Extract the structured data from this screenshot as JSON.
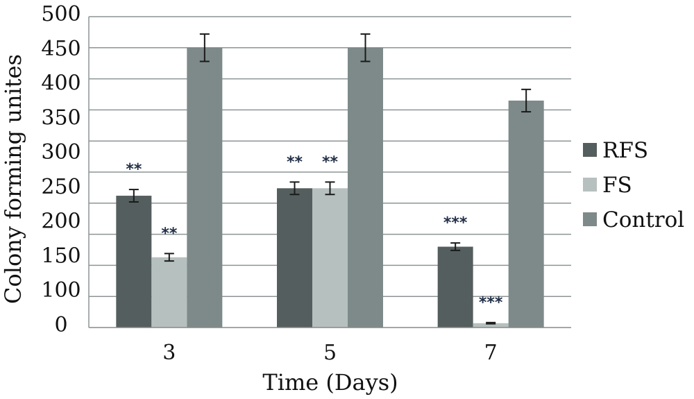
{
  "chart_data": {
    "type": "bar",
    "xlabel": "Time (Days)",
    "ylabel": "Colony forming unites",
    "ylim": [
      0,
      500
    ],
    "yticks": [
      "0",
      "100",
      "150",
      "200",
      "250",
      "300",
      "350",
      "400",
      "450",
      "500"
    ],
    "categories": [
      "3",
      "5",
      "7"
    ],
    "grid": true,
    "legend_position": "right",
    "series": [
      {
        "name": "RFS",
        "color": "#555e5e",
        "values": [
          212,
          224,
          130
        ],
        "errors": [
          10,
          10,
          6
        ],
        "annotations": [
          "**",
          "**",
          "***"
        ]
      },
      {
        "name": "FS",
        "color": "#b6c0bf",
        "values": [
          113,
          224,
          7
        ],
        "errors": [
          6,
          10,
          1
        ],
        "annotations": [
          "**",
          "**",
          "***"
        ]
      },
      {
        "name": "Control",
        "color": "#7d8a89",
        "values": [
          450,
          450,
          365
        ],
        "errors": [
          22,
          22,
          18
        ],
        "annotations": [
          "",
          "",
          ""
        ]
      }
    ]
  }
}
